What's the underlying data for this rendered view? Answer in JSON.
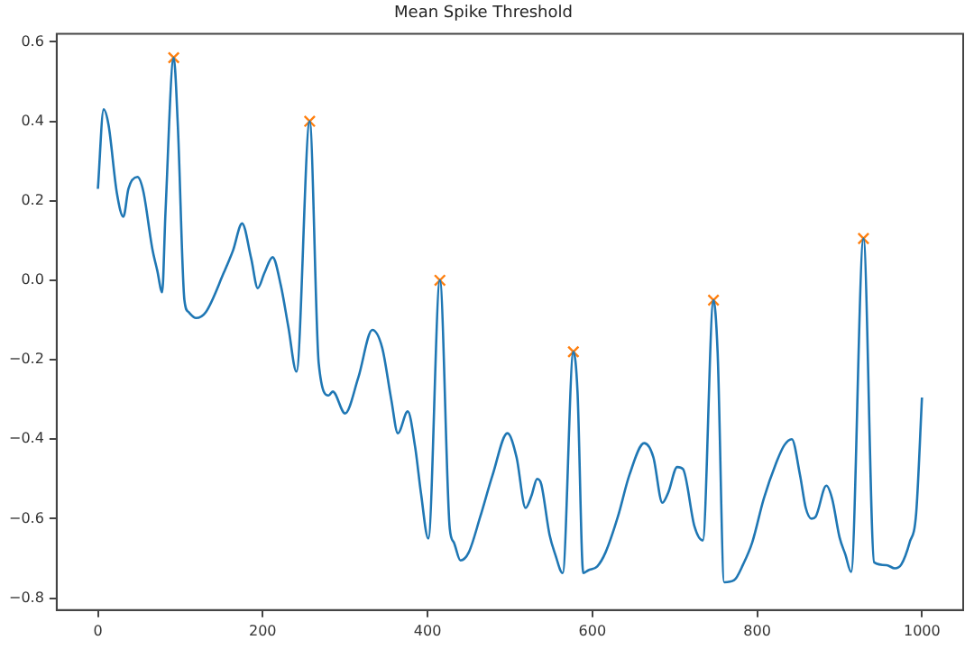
{
  "chart_data": {
    "type": "line",
    "title": "Mean Spike Threshold",
    "xlim": [
      -50,
      1050
    ],
    "xticks": [
      0,
      200,
      400,
      600,
      800,
      1000
    ],
    "ylim": [
      -0.83,
      0.62
    ],
    "yticks": [
      {
        "value": -0.8,
        "label": "−0.8"
      },
      {
        "value": -0.6,
        "label": "−0.6"
      },
      {
        "value": -0.4,
        "label": "−0.4"
      },
      {
        "value": -0.2,
        "label": "−0.2"
      },
      {
        "value": 0,
        "label": "0.0"
      },
      {
        "value": 0.2,
        "label": "0.2"
      },
      {
        "value": 0.4,
        "label": "0.4"
      },
      {
        "value": 0.6,
        "label": "0.6"
      }
    ],
    "grid": false,
    "legend": false,
    "series": [
      {
        "type": "line",
        "color": "#1f77b4",
        "marker": "none",
        "line_style": "solid",
        "x": [
          0,
          7,
          13,
          23,
          31,
          37,
          48,
          55,
          66,
          72,
          78,
          82,
          92,
          97,
          105,
          110,
          119,
          131,
          153,
          164,
          175,
          186,
          194,
          202,
          212,
          222,
          231,
          241,
          257,
          268,
          280,
          285,
          300,
          316,
          333,
          345,
          356,
          364,
          376,
          385,
          392,
          401,
          415,
          427,
          432,
          440,
          450,
          464,
          479,
          497,
          508,
          519,
          526,
          533,
          538,
          548,
          555,
          564,
          577,
          582,
          589,
          595,
          606,
          616,
          631,
          645,
          663,
          674,
          685,
          692,
          703,
          710,
          724,
          734,
          747,
          752,
          760,
          772,
          783,
          794,
          808,
          823,
          833,
          842,
          852,
          859,
          866,
          871,
          884,
          891,
          900,
          907,
          914,
          929,
          942,
          957,
          967,
          975,
          985,
          993,
          1000
        ],
        "values": [
          0.23,
          0.43,
          0.39,
          0.22,
          0.16,
          0.23,
          0.26,
          0.225,
          0.08,
          0.025,
          -0.03,
          0.17,
          0.56,
          0.39,
          -0.05,
          -0.08,
          -0.095,
          -0.08,
          0.02,
          0.075,
          0.143,
          0.055,
          -0.02,
          0.018,
          0.058,
          -0.013,
          -0.116,
          -0.23,
          0.4,
          -0.21,
          -0.29,
          -0.28,
          -0.335,
          -0.245,
          -0.125,
          -0.17,
          -0.3,
          -0.385,
          -0.33,
          -0.42,
          -0.535,
          -0.65,
          0.0,
          -0.625,
          -0.66,
          -0.705,
          -0.685,
          -0.595,
          -0.49,
          -0.385,
          -0.445,
          -0.573,
          -0.543,
          -0.5,
          -0.513,
          -0.64,
          -0.69,
          -0.737,
          -0.18,
          -0.28,
          -0.737,
          -0.73,
          -0.72,
          -0.685,
          -0.595,
          -0.49,
          -0.41,
          -0.445,
          -0.56,
          -0.535,
          -0.47,
          -0.475,
          -0.62,
          -0.655,
          -0.05,
          -0.18,
          -0.76,
          -0.755,
          -0.715,
          -0.66,
          -0.55,
          -0.46,
          -0.415,
          -0.4,
          -0.49,
          -0.573,
          -0.6,
          -0.595,
          -0.517,
          -0.55,
          -0.647,
          -0.69,
          -0.734,
          0.105,
          -0.71,
          -0.717,
          -0.725,
          -0.715,
          -0.66,
          -0.585,
          -0.295
        ]
      },
      {
        "type": "scatter",
        "color": "#ff7f0e",
        "marker": "cross",
        "x": [
          92,
          257,
          415,
          577,
          747,
          929
        ],
        "values": [
          0.56,
          0.4,
          0.0,
          -0.18,
          -0.05,
          0.105
        ]
      }
    ]
  }
}
